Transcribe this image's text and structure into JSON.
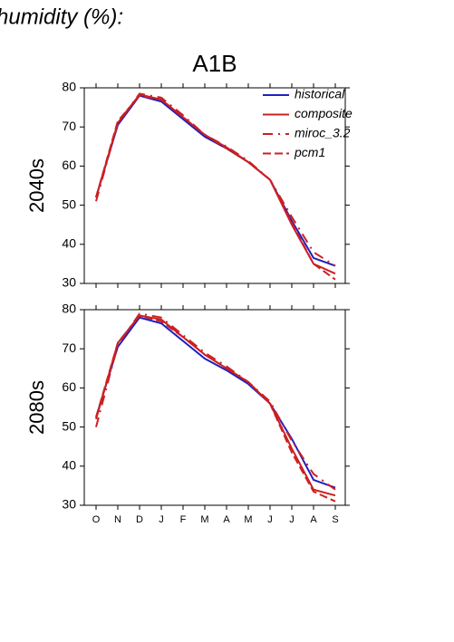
{
  "page_title": "humidity (%):",
  "chart_data": [
    {
      "type": "line",
      "title": "A1B",
      "y_label": "2040s",
      "ylim": [
        30,
        80
      ],
      "yticks": [
        30,
        40,
        50,
        60,
        70,
        80
      ],
      "grid": false,
      "legend": "top-right",
      "series": [
        {
          "name": "historical",
          "color": "#2020c0",
          "dash": "solid",
          "values": [
            52,
            70.5,
            78,
            76.5,
            72,
            67.5,
            64.5,
            61,
            56.5,
            46,
            36.5,
            34.5
          ]
        },
        {
          "name": "composite",
          "color": "#cc2020",
          "dash": "solid",
          "values": [
            52,
            71,
            78.3,
            77,
            72.5,
            68,
            64.8,
            61,
            56.5,
            45,
            35,
            32.5
          ]
        },
        {
          "name": "miroc_3.2",
          "color": "#cc2020",
          "dash": "dashdot",
          "values": [
            51,
            71,
            78.5,
            77.5,
            73,
            68,
            65,
            61.3,
            56.5,
            47,
            38,
            34.5
          ]
        },
        {
          "name": "pcm1",
          "color": "#cc2020",
          "dash": "dashed",
          "values": [
            52,
            71.5,
            78,
            77,
            72.5,
            68,
            64.5,
            61,
            56.5,
            45.5,
            35,
            31
          ]
        }
      ]
    },
    {
      "type": "line",
      "y_label": "2080s",
      "categories": [
        "O",
        "N",
        "D",
        "J",
        "F",
        "M",
        "A",
        "M",
        "J",
        "J",
        "A",
        "S"
      ],
      "ylim": [
        30,
        80
      ],
      "yticks": [
        30,
        40,
        50,
        60,
        70,
        80
      ],
      "grid": false,
      "series": [
        {
          "color": "#2020c0",
          "dash": "solid",
          "values": [
            52.5,
            70.5,
            78,
            76.5,
            72,
            67.5,
            64.5,
            61,
            56,
            47,
            36.5,
            34.5
          ]
        },
        {
          "color": "#cc2020",
          "dash": "solid",
          "values": [
            52,
            71.5,
            78.5,
            77.5,
            73,
            68.5,
            65,
            61.5,
            56,
            44.5,
            34,
            32.5
          ]
        },
        {
          "color": "#cc2020",
          "dash": "dashdot",
          "values": [
            50,
            71,
            79,
            78,
            73.5,
            69,
            65.5,
            61.5,
            56.5,
            46.5,
            38,
            34
          ]
        },
        {
          "color": "#cc2020",
          "dash": "dashed",
          "values": [
            52.5,
            71.5,
            78.5,
            77,
            73,
            68.5,
            65,
            61.5,
            56,
            43.5,
            33.5,
            31
          ]
        }
      ]
    }
  ]
}
